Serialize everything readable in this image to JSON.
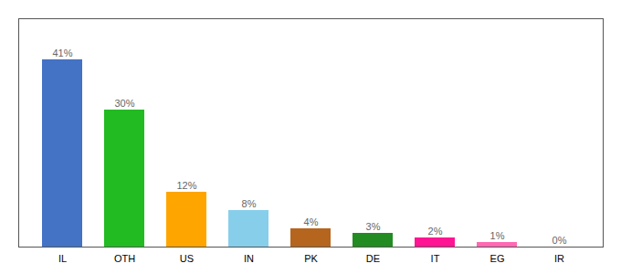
{
  "chart_data": {
    "type": "bar",
    "categories": [
      "IL",
      "OTH",
      "US",
      "IN",
      "PK",
      "DE",
      "IT",
      "EG",
      "IR"
    ],
    "values": [
      41,
      30,
      12,
      8,
      4,
      3,
      2,
      1,
      0
    ],
    "value_labels": [
      "41%",
      "30%",
      "12%",
      "8%",
      "4%",
      "3%",
      "2%",
      "1%",
      "0%"
    ],
    "colors": [
      "#4472c4",
      "#22bb22",
      "#ffa500",
      "#87ceeb",
      "#b5651d",
      "#228b22",
      "#ff1493",
      "#ff69b4",
      "#d3d3d3"
    ],
    "ylim": [
      0,
      50
    ],
    "yticks": [],
    "tick_labels": "x",
    "data_labels": true
  }
}
